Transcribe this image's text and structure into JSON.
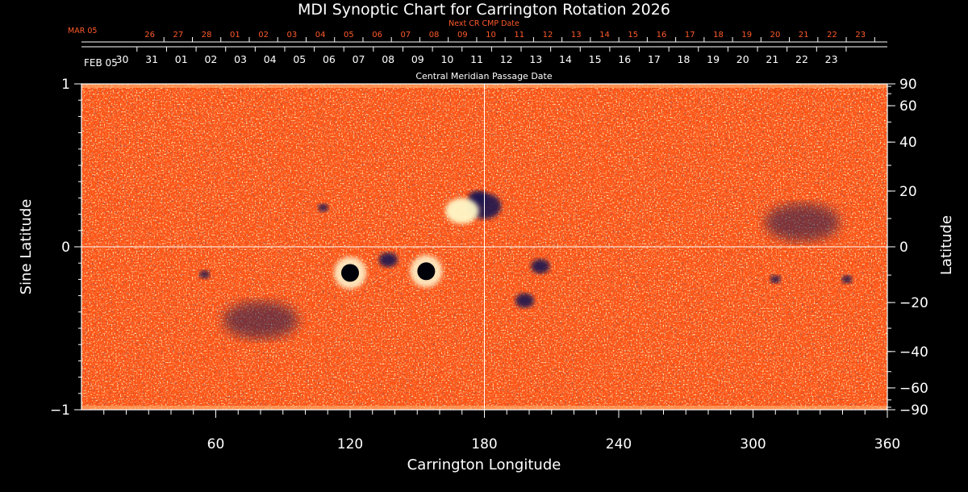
{
  "chart_data": {
    "type": "heatmap",
    "title": "MDI Synoptic Chart for Carrington Rotation 2026",
    "xlabel": "Carrington Longitude",
    "ylabel_left": "Sine Latitude",
    "ylabel_right": "Latitude",
    "xlim": [
      0,
      360
    ],
    "ylim": [
      -1,
      1
    ],
    "x_ticks": [
      60,
      120,
      180,
      240,
      300,
      360
    ],
    "y_ticks_left": [
      {
        "value": 1,
        "label": "1"
      },
      {
        "value": 0,
        "label": "0"
      },
      {
        "value": -1,
        "label": "−1"
      }
    ],
    "y_ticks_right": [
      {
        "deg": 90,
        "label": "90"
      },
      {
        "deg": 60,
        "label": "60"
      },
      {
        "deg": 40,
        "label": "40"
      },
      {
        "deg": 20,
        "label": "20"
      },
      {
        "deg": 0,
        "label": "0"
      },
      {
        "deg": -20,
        "label": "−20"
      },
      {
        "deg": -40,
        "label": "−40"
      },
      {
        "deg": -60,
        "label": "−60"
      },
      {
        "deg": -90,
        "label": "−90"
      }
    ],
    "colormap": {
      "negative": "#1a1450",
      "zero": "#ff5a14",
      "positive": "#fff8c8"
    },
    "cmp_axis": {
      "label": "Central Meridian Passage Date",
      "start_label": "FEB 05",
      "start_lon": 360,
      "day_labels": [
        "23",
        "22",
        "21",
        "20",
        "19",
        "18",
        "17",
        "16",
        "15",
        "14",
        "13",
        "12",
        "11",
        "10",
        "09",
        "08",
        "07",
        "06",
        "05",
        "04",
        "03",
        "02",
        "01",
        "31",
        "30"
      ],
      "first_day_lon": 335,
      "deg_per_day": 13.2
    },
    "next_cr_axis": {
      "label": "Next CR CMP Date",
      "start_label": "MAR 05",
      "start_lon": 360,
      "day_labels": [
        "23",
        "22",
        "21",
        "20",
        "19",
        "18",
        "17",
        "16",
        "15",
        "14",
        "13",
        "12",
        "11",
        "10",
        "09",
        "08",
        "07",
        "06",
        "05",
        "04",
        "03",
        "02",
        "01",
        "28",
        "27",
        "26"
      ],
      "first_day_lon": 348,
      "deg_per_day": 12.7
    },
    "crosshair": {
      "longitude": 180,
      "sine_latitude": 0
    },
    "active_regions": [
      {
        "lon": 180,
        "sinlat": 0.25,
        "polarity": "negative",
        "size": "large"
      },
      {
        "lon": 177,
        "sinlat": 0.3,
        "polarity": "negative",
        "size": "medium"
      },
      {
        "lon": 170,
        "sinlat": 0.22,
        "polarity": "positive",
        "size": "large"
      },
      {
        "lon": 120,
        "sinlat": -0.16,
        "polarity": "negative",
        "size": "sunspot"
      },
      {
        "lon": 137,
        "sinlat": -0.08,
        "polarity": "negative",
        "size": "medium"
      },
      {
        "lon": 154,
        "sinlat": -0.15,
        "polarity": "negative",
        "size": "sunspot"
      },
      {
        "lon": 55,
        "sinlat": -0.17,
        "polarity": "negative",
        "size": "small"
      },
      {
        "lon": 205,
        "sinlat": -0.12,
        "polarity": "negative",
        "size": "medium"
      },
      {
        "lon": 198,
        "sinlat": -0.33,
        "polarity": "negative",
        "size": "medium"
      },
      {
        "lon": 310,
        "sinlat": -0.2,
        "polarity": "negative",
        "size": "small"
      },
      {
        "lon": 108,
        "sinlat": 0.24,
        "polarity": "negative",
        "size": "small"
      },
      {
        "lon": 80,
        "sinlat": -0.45,
        "polarity": "negative",
        "size": "diffuse"
      },
      {
        "lon": 322,
        "sinlat": 0.15,
        "polarity": "negative",
        "size": "diffuse"
      },
      {
        "lon": 342,
        "sinlat": -0.2,
        "polarity": "negative",
        "size": "small"
      }
    ]
  }
}
